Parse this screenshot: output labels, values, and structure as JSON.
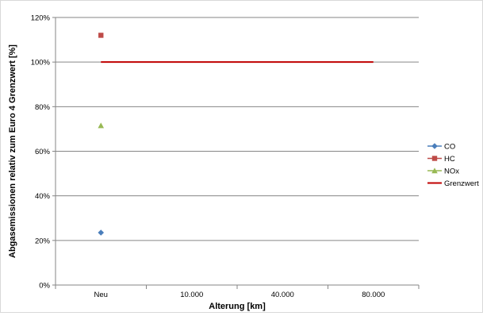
{
  "chart_data": {
    "type": "scatter",
    "title": "",
    "xlabel": "Alterung [km]",
    "ylabel": "Abgasemissionen relativ zum Euro 4 Grenzwert [%]",
    "categories": [
      "Neu",
      "10.000",
      "40.000",
      "80.000"
    ],
    "yticks": [
      "0%",
      "20%",
      "40%",
      "60%",
      "80%",
      "100%",
      "120%"
    ],
    "ylim": [
      0,
      1.2
    ],
    "grid": "horizontal",
    "legend_position": "right",
    "series": [
      {
        "name": "CO",
        "marker": "diamond",
        "color": "#4a7ebb",
        "points": [
          {
            "x": "Neu",
            "y": 0.235
          }
        ]
      },
      {
        "name": "HC",
        "marker": "square",
        "color": "#be4b48",
        "points": [
          {
            "x": "Neu",
            "y": 1.12
          }
        ]
      },
      {
        "name": "NOx",
        "marker": "triangle",
        "color": "#98b954",
        "points": [
          {
            "x": "Neu",
            "y": 0.715
          }
        ]
      },
      {
        "name": "Grenzwert",
        "marker": "line",
        "color": "#c00000",
        "points": [
          {
            "x": "Neu",
            "y": 1.0
          },
          {
            "x": "80.000",
            "y": 1.0
          }
        ]
      }
    ]
  }
}
